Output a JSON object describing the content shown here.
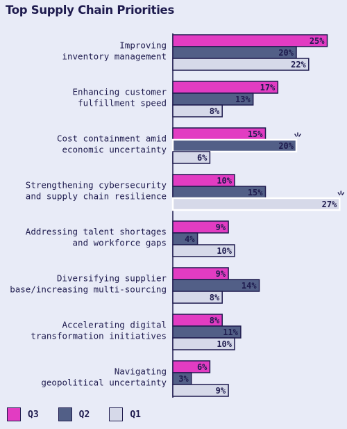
{
  "chart_data": {
    "type": "bar",
    "orientation": "horizontal",
    "title": "Top Supply Chain Priorities",
    "categories": [
      [
        "Improving",
        "inventory management"
      ],
      [
        "Enhancing customer",
        "fulfillment speed"
      ],
      [
        "Cost containment amid",
        "economic uncertainty"
      ],
      [
        "Strengthening cybersecurity",
        "and supply chain resilience"
      ],
      [
        "Addressing talent shortages",
        "and workforce gaps"
      ],
      [
        "Diversifying supplier",
        "base/increasing multi-sourcing"
      ],
      [
        "Accelerating digital",
        "transformation initiatives"
      ],
      [
        "Navigating",
        "geopolitical uncertainty"
      ]
    ],
    "series": [
      {
        "name": "Q3",
        "color": "#e23cc2",
        "values": [
          25,
          17,
          15,
          10,
          9,
          9,
          8,
          6
        ],
        "labels": [
          "25%",
          "17%",
          "15%",
          "10%",
          "9%",
          "9%",
          "8%",
          "6%"
        ]
      },
      {
        "name": "Q2",
        "color": "#525f87",
        "values": [
          20,
          13,
          20,
          15,
          4,
          14,
          11,
          3
        ],
        "labels": [
          "20%",
          "13%",
          "20%",
          "15%",
          "4%",
          "14%",
          "11%",
          "3%"
        ]
      },
      {
        "name": "Q1",
        "color": "#d6d9e9",
        "values": [
          22,
          8,
          6,
          27,
          10,
          8,
          10,
          9
        ],
        "labels": [
          "22%",
          "8%",
          "6%",
          "27%",
          "10%",
          "8%",
          "10%",
          "9%"
        ]
      }
    ],
    "highlights": [
      {
        "category_index": 2,
        "series": "Q2"
      },
      {
        "category_index": 3,
        "series": "Q1"
      }
    ],
    "legend_position": "bottom-left",
    "value_unit": "%",
    "grid": false
  },
  "colors": {
    "text": "#1e1b4e",
    "background": "#e8ebf7",
    "outline": "#1e1b4e"
  }
}
